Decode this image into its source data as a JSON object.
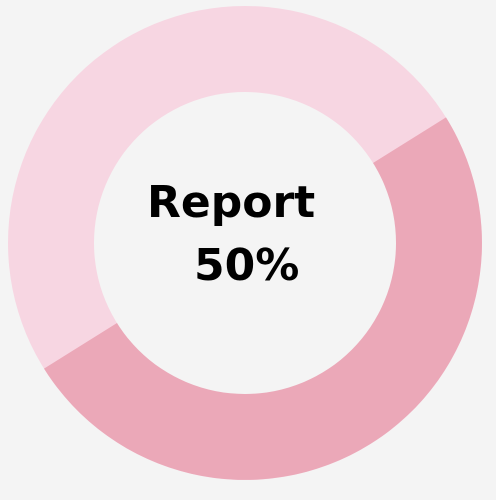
{
  "progress": {
    "title": "Report",
    "value_text": "50%",
    "fraction": 0.5
  },
  "colors": {
    "background": "#f4f4f4",
    "track": "#f7d6e2",
    "fill": "#eba8b8",
    "center": "#f4f4f4",
    "text": "#000000"
  }
}
